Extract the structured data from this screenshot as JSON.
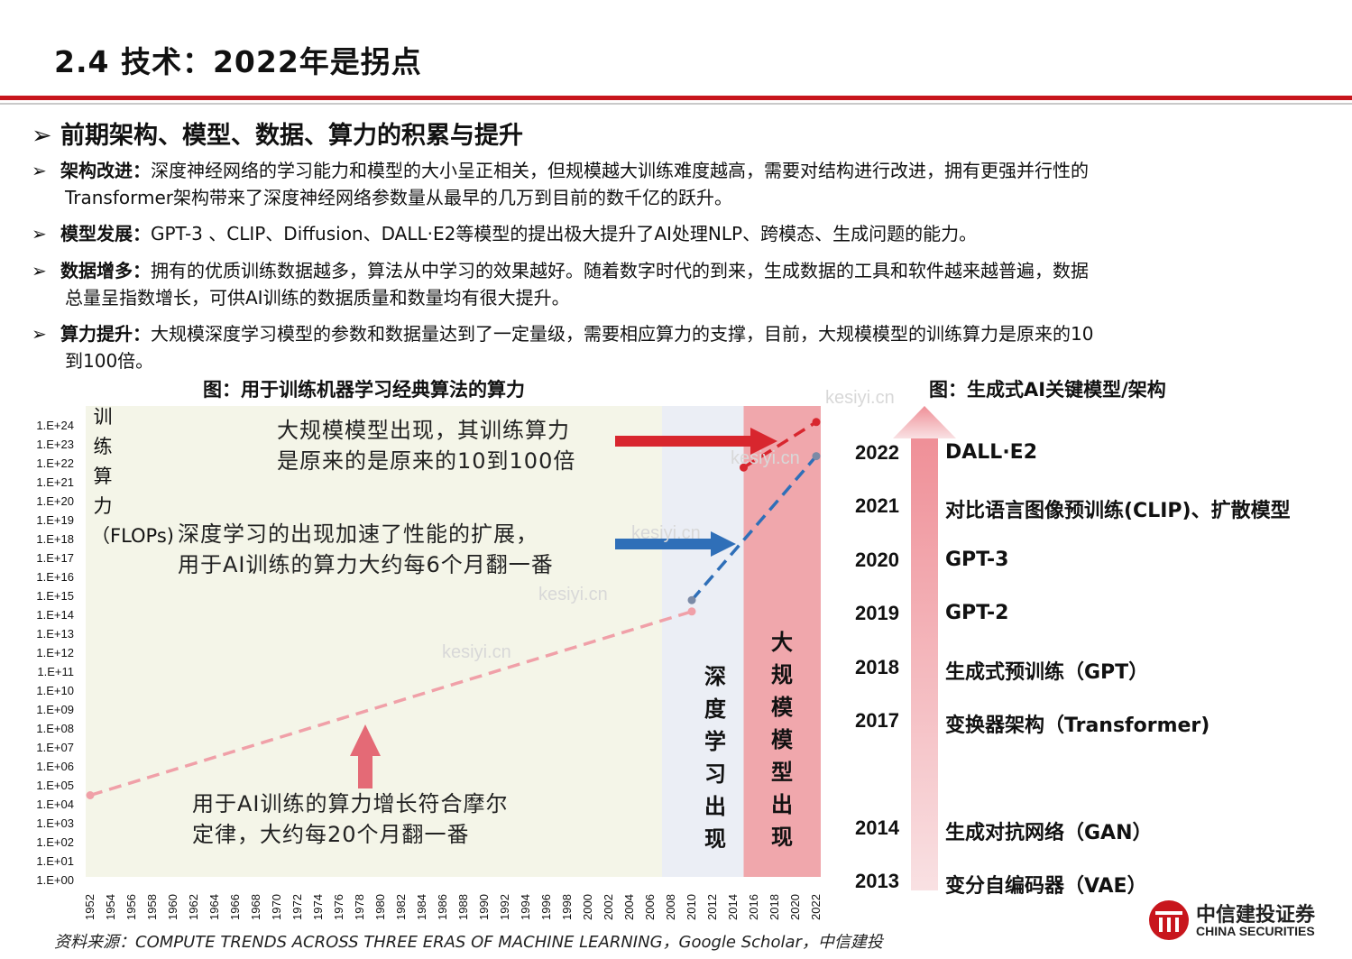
{
  "header": {
    "title": "2.4 技术：2022年是拐点"
  },
  "section": {
    "heading_mark": "➢",
    "heading": "前期架构、模型、数据、算力的积累与提升"
  },
  "bullets": [
    {
      "mark": "➢",
      "label": "架构改进：",
      "line1": "深度神经网络的学习能力和模型的大小呈正相关，但规模越大训练难度越高，需要对结构进行改进，拥有更强并行性的",
      "line2": "Transformer架构带来了深度神经网络参数量从最早的几万到目前的数千亿的跃升。"
    },
    {
      "mark": "➢",
      "label": "模型发展：",
      "line1": "GPT-3 、CLIP、Diffusion、DALL·E2等模型的提出极大提升了AI处理NLP、跨模态、生成问题的能力。",
      "line2": ""
    },
    {
      "mark": "➢",
      "label": "数据增多：",
      "line1": "拥有的优质训练数据越多，算法从中学习的效果越好。随着数字时代的到来，生成数据的工具和软件越来越普遍，数据",
      "line2": "总量呈指数增长，可供AI训练的数据质量和数量均有很大提升。"
    },
    {
      "mark": "➢",
      "label": "算力提升：",
      "line1": "大规模深度学习模型的参数和数据量达到了一定量级，需要相应算力的支撑，目前，大规模模型的训练算力是原来的10",
      "line2": "到100倍。"
    }
  ],
  "left_caption": "图：用于训练机器学习经典算法的算力",
  "right_caption": "图：生成式AI关键模型/架构",
  "chart_data": {
    "type": "line",
    "ylabel": "训练算力（FLOPs)",
    "y_ticks": [
      "1.E+00",
      "1.E+01",
      "1.E+02",
      "1.E+03",
      "1.E+04",
      "1.E+05",
      "1.E+06",
      "1.E+07",
      "1.E+08",
      "1.E+09",
      "1.E+10",
      "1.E+11",
      "1.E+12",
      "1.E+13",
      "1.E+14",
      "1.E+15",
      "1.E+16",
      "1.E+17",
      "1.E+18",
      "1.E+19",
      "1.E+20",
      "1.E+21",
      "1.E+22",
      "1.E+23",
      "1.E+24"
    ],
    "x_ticks": [
      "1952",
      "1954",
      "1956",
      "1958",
      "1960",
      "1962",
      "1964",
      "1966",
      "1968",
      "1970",
      "1972",
      "1974",
      "1976",
      "1978",
      "1980",
      "1982",
      "1984",
      "1986",
      "1988",
      "1990",
      "1992",
      "1994",
      "1996",
      "1998",
      "2000",
      "2002",
      "2004",
      "2006",
      "2008",
      "2010",
      "2012",
      "2014",
      "2016",
      "2018",
      "2020",
      "2022"
    ],
    "xlim": [
      1952,
      2022
    ],
    "ylim_log10": [
      0,
      24
    ],
    "series": [
      {
        "color": "#f0a0a8",
        "x": [
          1952,
          2010
        ],
        "y_log10": [
          4.5,
          14.2
        ]
      },
      {
        "color": "#2f6fb8",
        "x": [
          2010,
          2022
        ],
        "y_log10": [
          14.8,
          22.4
        ]
      },
      {
        "color": "#d8262e",
        "x": [
          2015,
          2022
        ],
        "y_log10": [
          21.8,
          24.2
        ]
      }
    ],
    "eras": [
      {
        "label": "深度学习出现",
        "x_start": 2010,
        "x_end": 2015,
        "color": "#ebeef5"
      },
      {
        "label": "大规模模型出现",
        "x_start": 2015,
        "x_end": 2022,
        "color": "#f0a7ac"
      }
    ],
    "annotations": [
      {
        "line1": "大规模模型出现，其训练算力",
        "line2": "是原来的是原来的10到100倍"
      },
      {
        "line1": "深度学习的出现加速了性能的扩展，",
        "line2": "用于AI训练的算力大约每6个月翻一番"
      },
      {
        "line1": "用于AI训练的算力增长符合摩尔",
        "line2": "定律，大约每20个月翻一番"
      }
    ]
  },
  "timeline": [
    {
      "year": "2022",
      "name": "DALL·E2"
    },
    {
      "year": "2021",
      "name": "对比语言图像预训练(CLIP)、扩散模型"
    },
    {
      "year": "2020",
      "name": "GPT-3"
    },
    {
      "year": "2019",
      "name": "GPT-2"
    },
    {
      "year": "2018",
      "name": "生成式预训练（GPT）"
    },
    {
      "year": "2017",
      "name": "变换器架构（Transformer)"
    },
    {
      "year": "2014",
      "name": "生成对抗网络（GAN）"
    },
    {
      "year": "2013",
      "name": "变分自编码器（VAE）"
    }
  ],
  "watermark": "kesiyi.cn",
  "source": "资料来源：COMPUTE TRENDS ACROSS THREE ERAS OF MACHINE LEARNING，Google Scholar，中信建投",
  "logo": {
    "cn": "中信建投证券",
    "en": "CHINA SECURITIES",
    "color": "#c8161d"
  }
}
